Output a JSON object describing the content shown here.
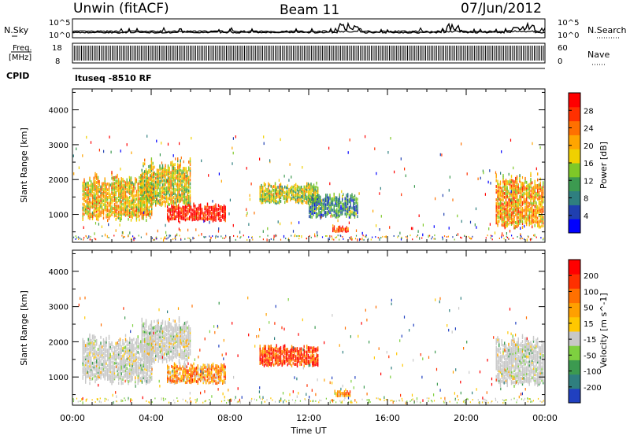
{
  "header": {
    "station": "Unwin (fitACF)",
    "beam": "Beam 11",
    "date": "07/Jun/2012"
  },
  "strips": {
    "nsky": {
      "label": "N.Sky",
      "right_label": "N.Search",
      "ticks": [
        "10^5",
        "10^0"
      ]
    },
    "freq": {
      "label_line1": "Freq.",
      "label_line2": "[MHz]",
      "right_label": "Nave",
      "left_ticks": [
        "18",
        "8"
      ],
      "right_ticks": [
        "60",
        "0"
      ]
    },
    "cpid": {
      "label": "CPID",
      "program": "ltuseq -8510 RF"
    }
  },
  "chart_data": [
    {
      "type": "heatmap",
      "panel": "power",
      "xlabel": "",
      "ylabel": "Slant Range [km]",
      "xlim": [
        0,
        24
      ],
      "ylim": [
        200,
        4600
      ],
      "yticks": [
        "1000",
        "2000",
        "3000",
        "4000"
      ],
      "colorbar": {
        "label": "Power [dB]",
        "ticks": [
          "4",
          "8",
          "12",
          "16",
          "20",
          "24",
          "28"
        ],
        "colors": [
          "#0000ff",
          "#1f3fb0",
          "#2f7f7f",
          "#3c9a50",
          "#7ec828",
          "#f0d000",
          "#ffa500",
          "#ff7000",
          "#ff3000",
          "#ff0000"
        ]
      },
      "regions": [
        {
          "t0": 0.5,
          "t1": 4.0,
          "r0": 800,
          "r1": 2200,
          "level": 0.6
        },
        {
          "t0": 3.5,
          "t1": 6.0,
          "r0": 1200,
          "r1": 2600,
          "level": 0.55
        },
        {
          "t0": 4.8,
          "t1": 7.8,
          "r0": 800,
          "r1": 1300,
          "level": 0.95
        },
        {
          "t0": 9.5,
          "t1": 12.5,
          "r0": 1300,
          "r1": 1900,
          "level": 0.5
        },
        {
          "t0": 12.0,
          "t1": 14.5,
          "r0": 900,
          "r1": 1600,
          "level": 0.3
        },
        {
          "t0": 13.2,
          "t1": 14.0,
          "r0": 500,
          "r1": 650,
          "level": 0.9
        },
        {
          "t0": 21.5,
          "t1": 23.9,
          "r0": 600,
          "r1": 2200,
          "level": 0.65
        }
      ]
    },
    {
      "type": "heatmap",
      "panel": "velocity",
      "xlabel": "Time UT",
      "ylabel": "Slant Range [km]",
      "xlim": [
        0,
        24
      ],
      "ylim": [
        200,
        4600
      ],
      "xticks": [
        "00:00",
        "04:00",
        "08:00",
        "12:00",
        "16:00",
        "20:00",
        "00:00"
      ],
      "yticks": [
        "1000",
        "2000",
        "3000",
        "4000"
      ],
      "colorbar": {
        "label": "Velocity [m s^-1]",
        "ticks": [
          "200",
          "100",
          "50",
          "15",
          "-15",
          "-50",
          "-100",
          "-200"
        ],
        "colors": [
          "#2040c0",
          "#2f7f7f",
          "#3c9a50",
          "#7ed040",
          "#c8c8c8",
          "#ffc800",
          "#ffa000",
          "#ff7000",
          "#ff3000",
          "#ff0000"
        ]
      },
      "regions": [
        {
          "t0": 0.5,
          "t1": 4.0,
          "r0": 800,
          "r1": 2200,
          "level": 0.45
        },
        {
          "t0": 3.5,
          "t1": 6.0,
          "r0": 1400,
          "r1": 2700,
          "level": 0.45
        },
        {
          "t0": 4.8,
          "t1": 7.8,
          "r0": 800,
          "r1": 1400,
          "level": 0.65
        },
        {
          "t0": 9.5,
          "t1": 12.5,
          "r0": 1300,
          "r1": 1900,
          "level": 0.85
        },
        {
          "t0": 13.3,
          "t1": 14.1,
          "r0": 450,
          "r1": 600,
          "level": 0.62
        },
        {
          "t0": 21.5,
          "t1": 23.9,
          "r0": 700,
          "r1": 2200,
          "level": 0.45
        }
      ]
    }
  ]
}
